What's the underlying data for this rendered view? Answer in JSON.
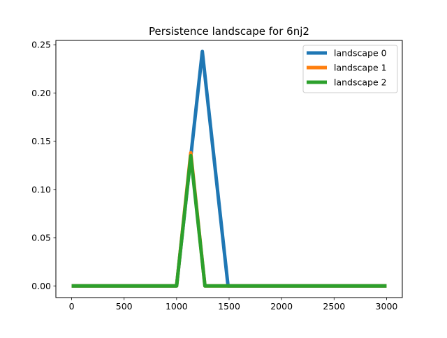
{
  "chart_data": {
    "type": "line",
    "title": "Persistence landscape for 6nj2",
    "xlabel": "",
    "ylabel": "",
    "xlim": [
      -150,
      3150
    ],
    "ylim": [
      -0.0121,
      0.2545
    ],
    "xticks": [
      0,
      500,
      1000,
      1500,
      2000,
      2500,
      3000
    ],
    "xtick_labels": [
      "0",
      "500",
      "1000",
      "1500",
      "2000",
      "2500",
      "3000"
    ],
    "yticks": [
      0.0,
      0.05,
      0.1,
      0.15,
      0.2,
      0.25
    ],
    "ytick_labels": [
      "0.00",
      "0.05",
      "0.10",
      "0.15",
      "0.20",
      "0.25"
    ],
    "grid": false,
    "legend_position": "top-right",
    "series": [
      {
        "name": "landscape 0",
        "color": "#1f77b4",
        "x": [
          0,
          1000,
          1245,
          1490,
          3000
        ],
        "y": [
          0,
          0,
          0.243,
          0,
          0
        ]
      },
      {
        "name": "landscape 1",
        "color": "#ff7f0e",
        "x": [
          0,
          1000,
          1135,
          1270,
          3000
        ],
        "y": [
          0,
          0,
          0.138,
          0,
          0
        ]
      },
      {
        "name": "landscape 2",
        "color": "#2ca02c",
        "x": [
          0,
          1000,
          1135,
          1270,
          3000
        ],
        "y": [
          0,
          0,
          0.135,
          0,
          0
        ]
      }
    ]
  }
}
